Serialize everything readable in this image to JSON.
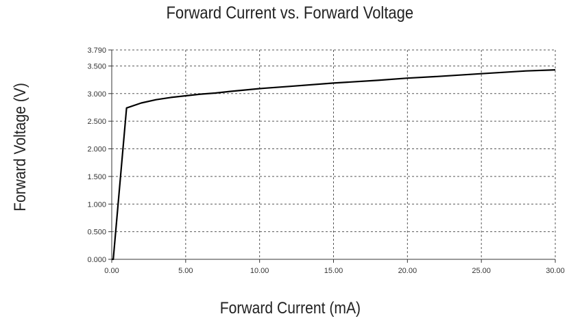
{
  "chart_data": {
    "type": "line",
    "title": "Forward Current vs. Forward Voltage",
    "xlabel": "Forward Current (mA)",
    "ylabel": "Forward Voltage (V)",
    "xlim": [
      0,
      30
    ],
    "ylim": [
      0,
      3.79
    ],
    "x_ticks": [
      "0.00",
      "5.00",
      "10.00",
      "15.00",
      "20.00",
      "25.00",
      "30.00"
    ],
    "y_ticks": [
      "0.000",
      "0.500",
      "1.000",
      "1.500",
      "2.000",
      "2.500",
      "3.000",
      "3.500",
      "3.790"
    ],
    "grid": true,
    "series": [
      {
        "x": [
          0,
          0.1,
          1.0,
          2.0,
          3.0,
          4.0,
          5.0,
          6.0,
          7.0,
          8.0,
          10.0,
          12.0,
          15.0,
          18.0,
          20.0,
          22.0,
          25.0,
          28.0,
          30.0
        ],
        "y": [
          0.0,
          0.0,
          2.74,
          2.83,
          2.89,
          2.93,
          2.96,
          2.99,
          3.01,
          3.04,
          3.09,
          3.13,
          3.19,
          3.24,
          3.28,
          3.31,
          3.36,
          3.41,
          3.43
        ]
      }
    ]
  }
}
